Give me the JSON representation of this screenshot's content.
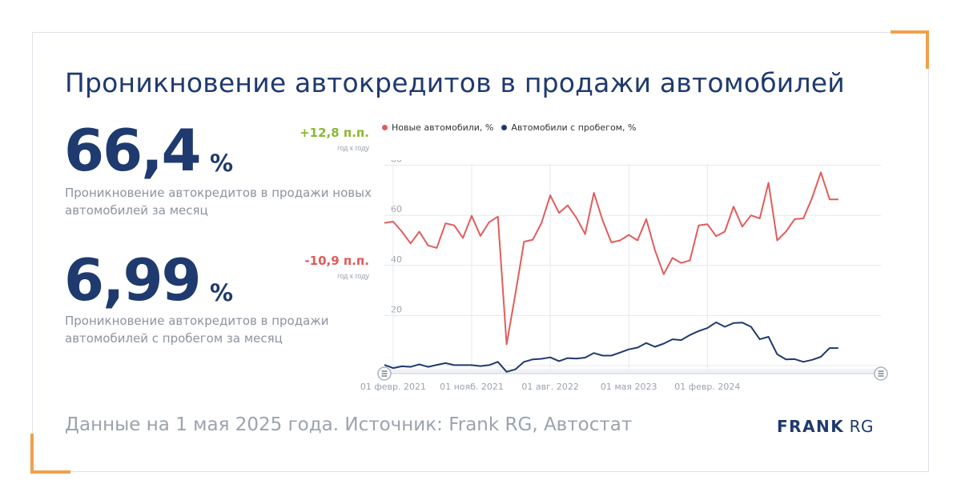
{
  "title": "Проникновение автокредитов в продажи автомобилей",
  "kpis": [
    {
      "value": "66,4",
      "unit": "%",
      "delta": "+12,8 п.п.",
      "delta_sub": "год к году",
      "delta_color": "#8ab833",
      "description": "Проникновение автокредитов в продажи новых автомобилей за месяц"
    },
    {
      "value": "6,99",
      "unit": "%",
      "delta": "-10,9 п.п.",
      "delta_sub": "год к году",
      "delta_color": "#e05a5a",
      "description": "Проникновение автокредитов в продажи автомобилей с пробегом за месяц"
    }
  ],
  "footer": "Данные на 1 мая 2025 года. Источник: Frank RG, Автостат",
  "logo": {
    "bold": "FRANK",
    "light": "RG"
  },
  "colors": {
    "new": "#e25c5c",
    "used": "#1f3a6e",
    "accent": "#f0a04b",
    "grid": "#e6e8ee"
  },
  "chart_data": {
    "type": "line",
    "x_start": "2021-01",
    "x": [
      "2021-01",
      "2021-02",
      "2021-03",
      "2021-04",
      "2021-05",
      "2021-06",
      "2021-07",
      "2021-08",
      "2021-09",
      "2021-10",
      "2021-11",
      "2021-12",
      "2022-01",
      "2022-02",
      "2022-03",
      "2022-04",
      "2022-05",
      "2022-06",
      "2022-07",
      "2022-08",
      "2022-09",
      "2022-10",
      "2022-11",
      "2022-12",
      "2023-01",
      "2023-02",
      "2023-03",
      "2023-04",
      "2023-05",
      "2023-06",
      "2023-07",
      "2023-08",
      "2023-09",
      "2023-10",
      "2023-11",
      "2023-12",
      "2024-01",
      "2024-02",
      "2024-03",
      "2024-04",
      "2024-05",
      "2024-06",
      "2024-07",
      "2024-08",
      "2024-09",
      "2024-10",
      "2024-11",
      "2024-12",
      "2025-01",
      "2025-02",
      "2025-03",
      "2025-04",
      "2025-05"
    ],
    "ylim": [
      0,
      80
    ],
    "yticks": [
      80,
      60,
      40,
      20
    ],
    "xtick_labels": [
      "01 февр. 2021",
      "01 нояб. 2021",
      "01 авг. 2022",
      "01 мая 2023",
      "01 февр. 2024"
    ],
    "xtick_indices": [
      1,
      10,
      19,
      28,
      37
    ],
    "grid": true,
    "legend_position": "top",
    "series": [
      {
        "name": "Новые автомобили, %",
        "color": "#e25c5c",
        "values": [
          57.0,
          57.5,
          53.5,
          48.8,
          53.5,
          48.0,
          47.0,
          56.8,
          56.0,
          51.0,
          59.8,
          51.8,
          57.3,
          59.5,
          8.5,
          28.5,
          49.5,
          50.3,
          57.0,
          68.0,
          61.0,
          64.0,
          59.0,
          52.5,
          69.0,
          58.0,
          49.2,
          50.0,
          52.2,
          50.0,
          58.5,
          46.0,
          36.5,
          43.0,
          41.0,
          42.0,
          56.0,
          56.5,
          51.7,
          53.5,
          63.5,
          55.5,
          60.0,
          58.8,
          73.0,
          50.0,
          53.5,
          58.5,
          58.8,
          67.0,
          77.2,
          66.4,
          66.4
        ]
      },
      {
        "name": "Автомобили с пробегом, %",
        "color": "#1f3a6e",
        "values": [
          0.3,
          -1.0,
          -0.3,
          -0.5,
          0.5,
          -0.5,
          0.3,
          1.0,
          0.2,
          0.2,
          0.2,
          -0.2,
          0.2,
          1.5,
          -2.5,
          -1.5,
          1.5,
          2.5,
          2.7,
          3.3,
          1.8,
          3.0,
          2.8,
          3.2,
          5.0,
          4.0,
          4.0,
          5.2,
          6.5,
          7.2,
          9.0,
          7.5,
          8.8,
          10.5,
          10.2,
          12.2,
          13.8,
          15.0,
          17.3,
          15.5,
          17.0,
          17.2,
          15.5,
          10.5,
          11.5,
          4.5,
          2.5,
          2.6,
          1.5,
          2.3,
          3.5,
          6.99,
          6.99
        ]
      }
    ]
  }
}
